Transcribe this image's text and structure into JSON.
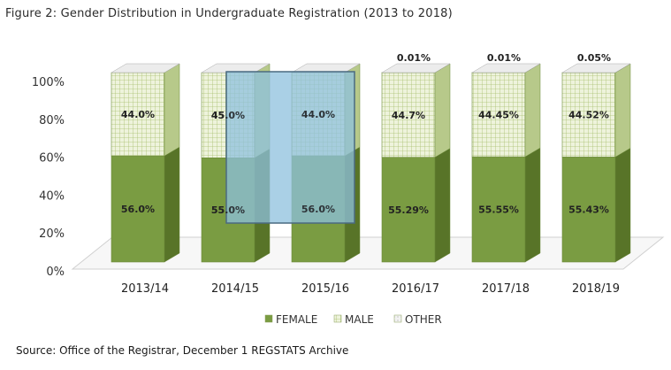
{
  "title": "Figure 2: Gender Distribution in Undergraduate Registration (2013 to 2018)",
  "source": "Source: Office of the Registrar, December 1 REGSTATS Archive",
  "chart_data": {
    "type": "bar",
    "stacked": true,
    "categories": [
      "2013/14",
      "2014/15",
      "2015/16",
      "2016/17",
      "2017/18",
      "2018/19"
    ],
    "series": [
      {
        "name": "FEMALE",
        "values": [
          56.0,
          55.0,
          56.0,
          55.29,
          55.55,
          55.43
        ],
        "labels": [
          "56.0%",
          "55.0%",
          "56.0%",
          "55.29%",
          "55.55%",
          "55.43%"
        ],
        "color": "#7a9c42"
      },
      {
        "name": "MALE",
        "values": [
          44.0,
          45.0,
          44.0,
          44.7,
          44.45,
          44.52
        ],
        "labels": [
          "44.0%",
          "45.0%",
          "44.0%",
          "44.7%",
          "44.45%",
          "44.52%"
        ],
        "color": "#d6e2b5"
      },
      {
        "name": "OTHER",
        "values": [
          0,
          0,
          0,
          0.01,
          0.01,
          0.05
        ],
        "labels": [
          "",
          "",
          "",
          "0.01%",
          "0.01%",
          "0.05%"
        ],
        "color": "#e6e6e6"
      }
    ],
    "y_ticks": [
      "0%",
      "20%",
      "40%",
      "60%",
      "80%",
      "100%"
    ],
    "ylim": [
      0,
      100
    ],
    "legend_position": "bottom",
    "legend": [
      "FEMALE",
      "MALE",
      "OTHER"
    ],
    "highlight_box": {
      "from_category": 1,
      "to_category": 2,
      "color": "#8ec0de"
    }
  }
}
